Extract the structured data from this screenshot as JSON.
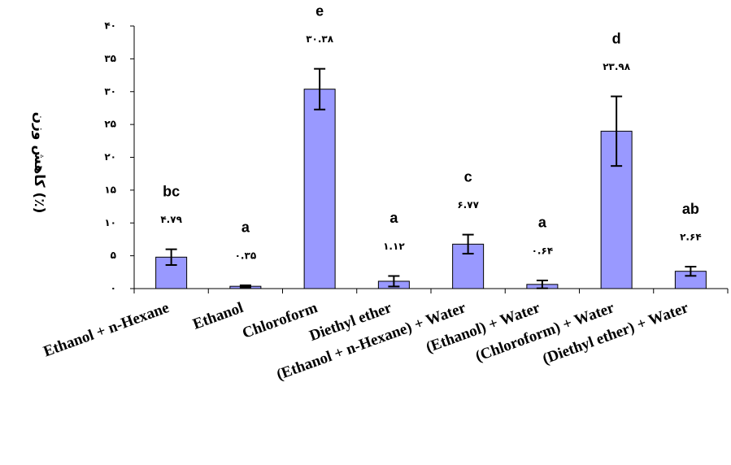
{
  "chart_data": {
    "type": "bar",
    "y_label": "کاهش وزن (٪)",
    "categories": [
      "Ethanol + n-Hexane",
      "Ethanol",
      "Chloroform",
      "Diethyl ether",
      "(Ethanol + n-Hexane) + Water",
      "(Ethanol) + Water",
      "(Chloroform) + Water",
      "(Diethyl ether) + Water"
    ],
    "values": [
      4.79,
      0.35,
      30.38,
      1.12,
      6.77,
      0.64,
      23.98,
      2.64
    ],
    "value_labels": [
      "۴.۷۹",
      "۰.۳۵",
      "۳۰.۳۸",
      "۱.۱۲",
      "۶.۷۷",
      "۰.۶۴",
      "۲۳.۹۸",
      "۲.۶۴"
    ],
    "errors": [
      1.2,
      0.15,
      3.1,
      0.8,
      1.45,
      0.6,
      5.3,
      0.7
    ],
    "significance_labels": [
      "bc",
      "a",
      "e",
      "a",
      "c",
      "a",
      "d",
      "ab"
    ],
    "color": "#9999ff",
    "ylim": [
      0,
      40
    ],
    "yticks": [
      {
        "value": 0,
        "label": "۰"
      },
      {
        "value": 5,
        "label": "۵"
      },
      {
        "value": 10,
        "label": "۱۰"
      },
      {
        "value": 15,
        "label": "۱۵"
      },
      {
        "value": 20,
        "label": "۲۰"
      },
      {
        "value": 25,
        "label": "۲۵"
      },
      {
        "value": 30,
        "label": "۳۰"
      },
      {
        "value": 35,
        "label": "۳۵"
      },
      {
        "value": 40,
        "label": "۴۰"
      }
    ],
    "grid": false
  }
}
